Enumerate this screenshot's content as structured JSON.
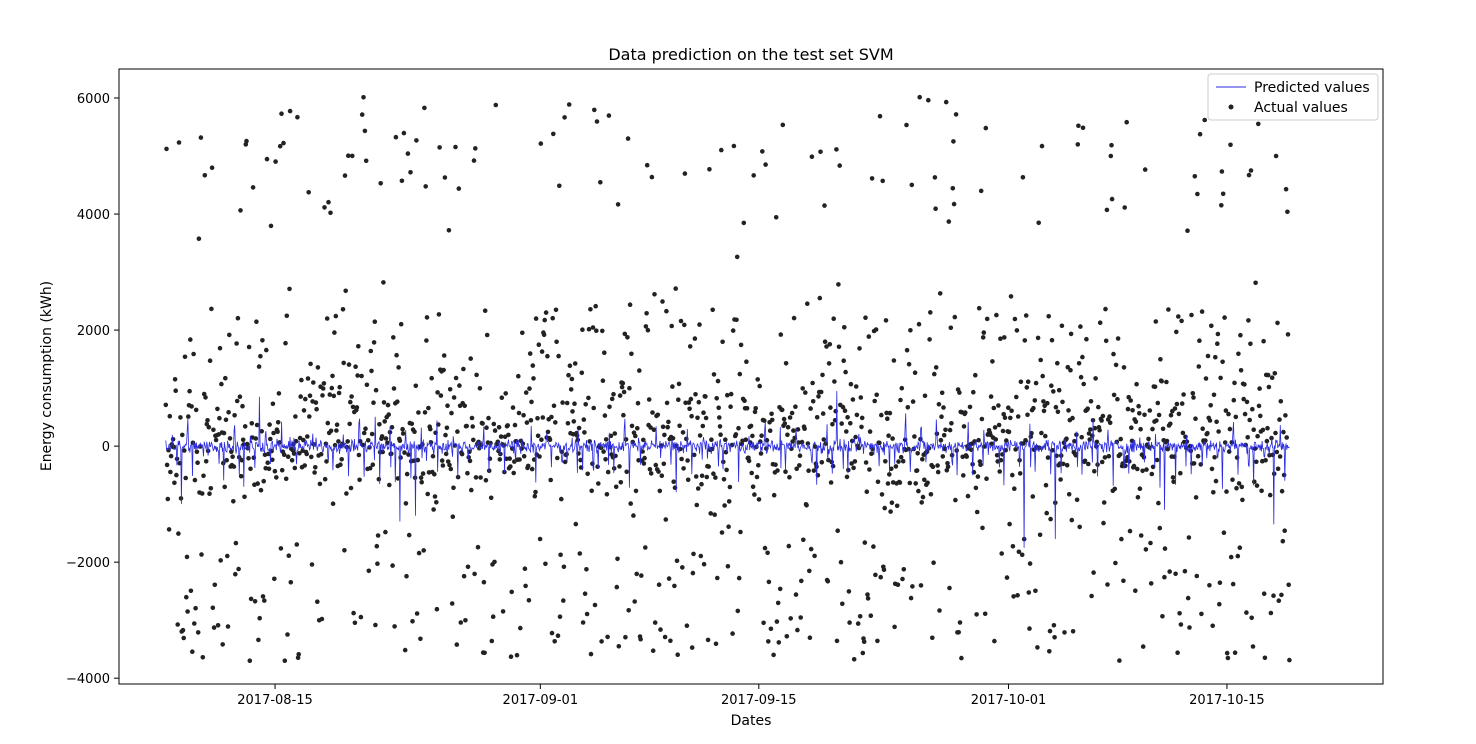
{
  "chart_data": {
    "type": "scatter",
    "title": "Data prediction on the test set SVM",
    "xlabel": "Dates",
    "ylabel": "Energy consumption (kWh)",
    "x_range": [
      "2017-08-05",
      "2017-10-25"
    ],
    "x_ticks": [
      "2017-08-15",
      "2017-09-01",
      "2017-09-15",
      "2017-10-01",
      "2017-10-15"
    ],
    "ylim": [
      -4100,
      6500
    ],
    "y_ticks": [
      6000,
      4000,
      2000,
      0,
      -2000,
      -4000
    ],
    "y_tick_labels": [
      "6000",
      "4000",
      "2000",
      "0",
      "−2000",
      "−4000"
    ],
    "grid": false,
    "legend_position": "top-right",
    "series": [
      {
        "name": "Predicted values",
        "kind": "line",
        "color": "#2a2ae0",
        "x_start": "2017-08-08",
        "x_end": "2017-10-19",
        "step_hours": 1,
        "baseline": 0,
        "note_spikes": [
          {
            "x": "2017-08-09",
            "y": -1000
          },
          {
            "x": "2017-08-13",
            "y": -700
          },
          {
            "x": "2017-08-14",
            "y": 850
          },
          {
            "x": "2017-08-23",
            "y": -1300
          },
          {
            "x": "2017-08-24",
            "y": -1200
          },
          {
            "x": "2017-09-20",
            "y": 950
          },
          {
            "x": "2017-10-02",
            "y": -1750
          },
          {
            "x": "2017-10-04",
            "y": -1600
          },
          {
            "x": "2017-10-11",
            "y": -1100
          },
          {
            "x": "2017-10-18",
            "y": -1350
          }
        ]
      },
      {
        "name": "Actual values",
        "kind": "scatter",
        "color": "#222222",
        "x_start": "2017-08-08",
        "x_end": "2017-10-19",
        "bands": [
          {
            "center": 0,
            "spread": 500,
            "share": 0.55
          },
          {
            "center": 1900,
            "spread": 450,
            "share": 0.12
          },
          {
            "center": -2000,
            "spread": 450,
            "share": 0.1
          },
          {
            "center": 5000,
            "spread": 700,
            "share": 0.08
          },
          {
            "center": -3100,
            "spread": 350,
            "share": 0.08
          },
          {
            "center": 900,
            "spread": 300,
            "share": 0.07
          }
        ]
      }
    ]
  }
}
